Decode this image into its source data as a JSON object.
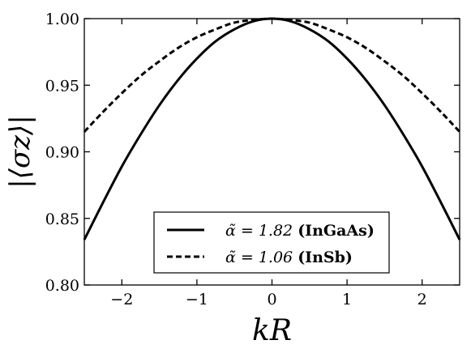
{
  "chart_data": {
    "type": "line",
    "title": "",
    "xlabel": "kR",
    "ylabel": "|⟨σz⟩|",
    "xlim": [
      -2.5,
      2.5
    ],
    "ylim": [
      0.8,
      1.0
    ],
    "xticks": [
      -2,
      -1,
      0,
      1,
      2
    ],
    "xtick_labels": [
      "−2",
      "−1",
      "0",
      "1",
      "2"
    ],
    "yticks": [
      0.8,
      0.85,
      0.9,
      0.95,
      1.0
    ],
    "ytick_labels": [
      "0.80",
      "0.85",
      "0.90",
      "0.95",
      "1.00"
    ],
    "grid": false,
    "legend_position": "lower-center",
    "series": [
      {
        "name": "α̃ = 1.82 (InGaAs)",
        "legend_math": "α̃ = 1.82",
        "legend_material": "(InGaAs)",
        "style": "solid",
        "color": "#000000",
        "x": [
          -2.5,
          -2.25,
          -2.0,
          -1.75,
          -1.5,
          -1.25,
          -1.0,
          -0.75,
          -0.5,
          -0.25,
          0.0,
          0.25,
          0.5,
          0.75,
          1.0,
          1.25,
          1.5,
          1.75,
          2.0,
          2.25,
          2.5
        ],
        "y": [
          0.834,
          0.862,
          0.889,
          0.913,
          0.935,
          0.954,
          0.97,
          0.983,
          0.992,
          0.998,
          1.0,
          0.998,
          0.992,
          0.983,
          0.97,
          0.954,
          0.935,
          0.913,
          0.889,
          0.862,
          0.834
        ]
      },
      {
        "name": "α̃ = 1.06 (InSb)",
        "legend_math": "α̃ = 1.06",
        "legend_material": "(InSb)",
        "style": "dashed",
        "color": "#000000",
        "x": [
          -2.5,
          -2.25,
          -2.0,
          -1.75,
          -1.5,
          -1.25,
          -1.0,
          -0.75,
          -0.5,
          -0.25,
          0.0,
          0.25,
          0.5,
          0.75,
          1.0,
          1.25,
          1.5,
          1.75,
          2.0,
          2.25,
          2.5
        ],
        "y": [
          0.915,
          0.93,
          0.944,
          0.957,
          0.968,
          0.978,
          0.986,
          0.992,
          0.997,
          0.999,
          1.0,
          0.999,
          0.997,
          0.992,
          0.986,
          0.978,
          0.968,
          0.957,
          0.944,
          0.93,
          0.915
        ]
      }
    ]
  }
}
